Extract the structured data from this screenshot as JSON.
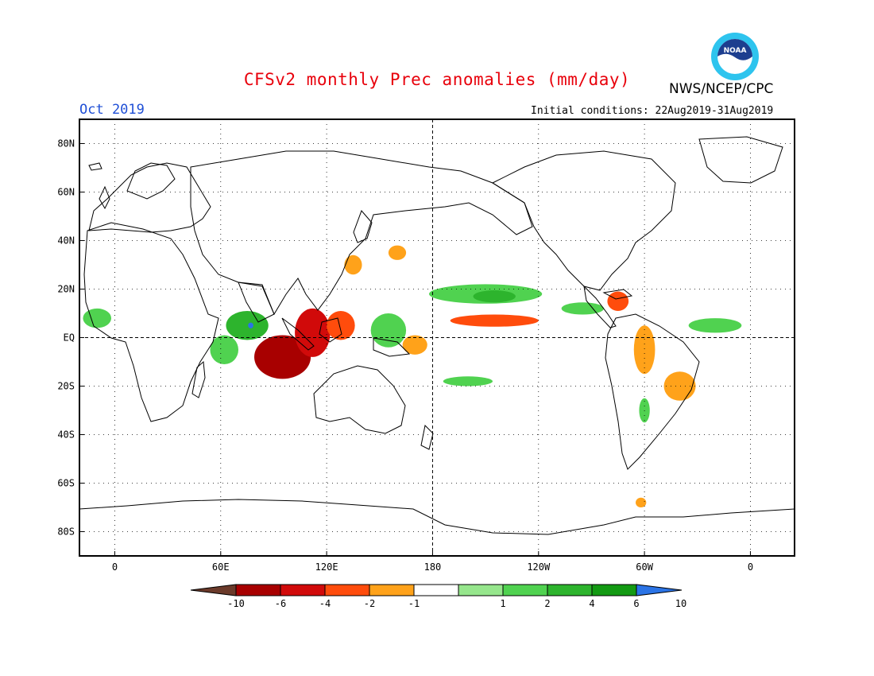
{
  "header": {
    "title": "CFSv2 monthly Prec anomalies (mm/day)",
    "agency": "NWS/NCEP/CPC",
    "month": "Oct 2019",
    "initial_conditions": "Initial conditions: 22Aug2019-31Aug2019",
    "logo_text": "NOAA"
  },
  "axes": {
    "lat_labels": [
      "80N",
      "60N",
      "40N",
      "20N",
      "EQ",
      "20S",
      "40S",
      "60S",
      "80S"
    ],
    "lat_values": [
      80,
      60,
      40,
      20,
      0,
      -20,
      -40,
      -60,
      -80
    ],
    "lon_labels": [
      "0",
      "60E",
      "120E",
      "180",
      "120W",
      "60W",
      "0"
    ],
    "lon_values": [
      0,
      60,
      120,
      180,
      240,
      300,
      360
    ],
    "lat_range": [
      -90,
      90
    ],
    "lon_range": [
      -20,
      385
    ]
  },
  "colorbar": {
    "labels": [
      "-10",
      "-6",
      "-4",
      "-2",
      "-1",
      "1",
      "2",
      "4",
      "6",
      "10"
    ],
    "colors": [
      "#6b3a2a",
      "#a80000",
      "#d10a0a",
      "#ff4c0c",
      "#ffa21a",
      "#ffffff",
      "#96e68c",
      "#50d250",
      "#2db42d",
      "#139a13",
      "#2b74e6"
    ]
  },
  "anomalies": [
    {
      "name": "maritime-continent-dry",
      "lon": 95,
      "lat": -8,
      "rx": 16,
      "ry": 9,
      "value": -7
    },
    {
      "name": "sumatra-dry",
      "lon": 112,
      "lat": 2,
      "rx": 10,
      "ry": 10,
      "value": -5
    },
    {
      "name": "philippines-dry",
      "lon": 128,
      "lat": 5,
      "rx": 8,
      "ry": 6,
      "value": -3
    },
    {
      "name": "east-asia-dry",
      "lon": 135,
      "lat": 30,
      "rx": 5,
      "ry": 4,
      "value": -2
    },
    {
      "name": "nw-pacific-dry",
      "lon": 160,
      "lat": 35,
      "rx": 5,
      "ry": 3,
      "value": -2
    },
    {
      "name": "central-pacific-dry-band",
      "lon": 215,
      "lat": 7,
      "rx": 25,
      "ry": 2.5,
      "value": -3
    },
    {
      "name": "dateline-dry",
      "lon": 170,
      "lat": -3,
      "rx": 7,
      "ry": 4,
      "value": -2
    },
    {
      "name": "caribbean-dry",
      "lon": 285,
      "lat": 15,
      "rx": 6,
      "ry": 4,
      "value": -3
    },
    {
      "name": "amazon-dry",
      "lon": 300,
      "lat": -5,
      "rx": 6,
      "ry": 10,
      "value": -2
    },
    {
      "name": "brazil-dry",
      "lon": 320,
      "lat": -20,
      "rx": 9,
      "ry": 6,
      "value": -2
    },
    {
      "name": "antarctic-peninsula-dry",
      "lon": 298,
      "lat": -68,
      "rx": 3,
      "ry": 2,
      "value": -2
    },
    {
      "name": "indian-ocean-wet",
      "lon": 75,
      "lat": 5,
      "rx": 12,
      "ry": 6,
      "value": 4
    },
    {
      "name": "west-indian-ocean-wet",
      "lon": 62,
      "lat": -5,
      "rx": 8,
      "ry": 6,
      "value": 2
    },
    {
      "name": "arabian-sea-blue",
      "lon": 77,
      "lat": 5,
      "rx": 1.5,
      "ry": 1.2,
      "value": 11
    },
    {
      "name": "africa-wet",
      "lon": -10,
      "lat": 8,
      "rx": 8,
      "ry": 4,
      "value": 2
    },
    {
      "name": "west-pacific-wet",
      "lon": 155,
      "lat": 3,
      "rx": 10,
      "ry": 7,
      "value": 2
    },
    {
      "name": "north-pacific-itcz-wet",
      "lon": 210,
      "lat": 18,
      "rx": 32,
      "ry": 4,
      "value": 2
    },
    {
      "name": "north-pacific-itcz-core",
      "lon": 215,
      "lat": 17,
      "rx": 12,
      "ry": 2.5,
      "value": 4
    },
    {
      "name": "east-pacific-wet",
      "lon": 265,
      "lat": 12,
      "rx": 12,
      "ry": 2.5,
      "value": 2
    },
    {
      "name": "atlantic-wet",
      "lon": 340,
      "lat": 5,
      "rx": 15,
      "ry": 3,
      "value": 2
    },
    {
      "name": "south-pacific-wet",
      "lon": 200,
      "lat": -18,
      "rx": 14,
      "ry": 2,
      "value": 2
    },
    {
      "name": "argentina-wet",
      "lon": 300,
      "lat": -30,
      "rx": 3,
      "ry": 5,
      "value": 2
    }
  ]
}
